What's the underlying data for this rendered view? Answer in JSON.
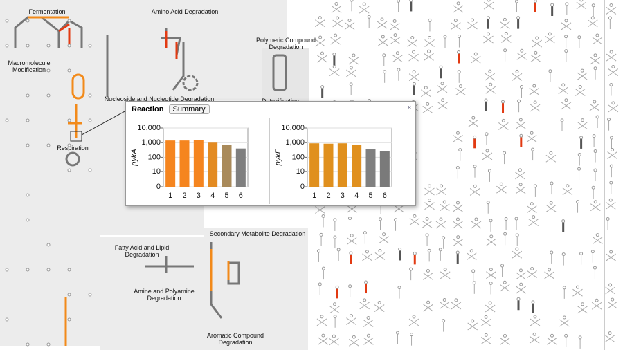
{
  "regions": [
    "Fermentation",
    "Amino Acid Degradation",
    "Polymeric Compound Degradation",
    "Macromolecule Modification",
    "Nucleoside and Nucleotide Degradation",
    "Detoxification",
    "Respiration",
    "Fatty Acid and Lipid Degradation",
    "Secondary Metabolite Degradation",
    "Amine and Polyamine Degradation",
    "Aromatic Compound Degradation"
  ],
  "popup": {
    "tabs": [
      "Reaction",
      "Summary"
    ]
  },
  "chart_data": [
    {
      "type": "bar",
      "ylabel": "pykA",
      "categories": [
        "1",
        "2",
        "3",
        "4",
        "5",
        "6"
      ],
      "values": [
        1400,
        1400,
        1500,
        1000,
        700,
        400
      ],
      "colors": [
        "#f5851f",
        "#f5851f",
        "#f5851f",
        "#e38b22",
        "#a98a5a",
        "#7f7f7f"
      ],
      "log": true,
      "ylim": [
        0,
        10000
      ],
      "yticks": [
        0,
        10,
        100,
        {
          "value": 1000,
          "label": "1,000"
        },
        {
          "value": 10000,
          "label": "10,000"
        }
      ],
      "grid": true
    },
    {
      "type": "bar",
      "ylabel": "pykF",
      "categories": [
        "1",
        "2",
        "3",
        "4",
        "5",
        "6"
      ],
      "values": [
        900,
        850,
        900,
        700,
        350,
        250
      ],
      "colors": [
        "#e0901e",
        "#e0901e",
        "#e0901e",
        "#e0901e",
        "#808080",
        "#7a7a7a"
      ],
      "log": true,
      "ylim": [
        0,
        10000
      ],
      "yticks": [
        0,
        10,
        100,
        {
          "value": 1000,
          "label": "1,000"
        },
        {
          "value": 10000,
          "label": "10,000"
        }
      ],
      "grid": true
    }
  ]
}
